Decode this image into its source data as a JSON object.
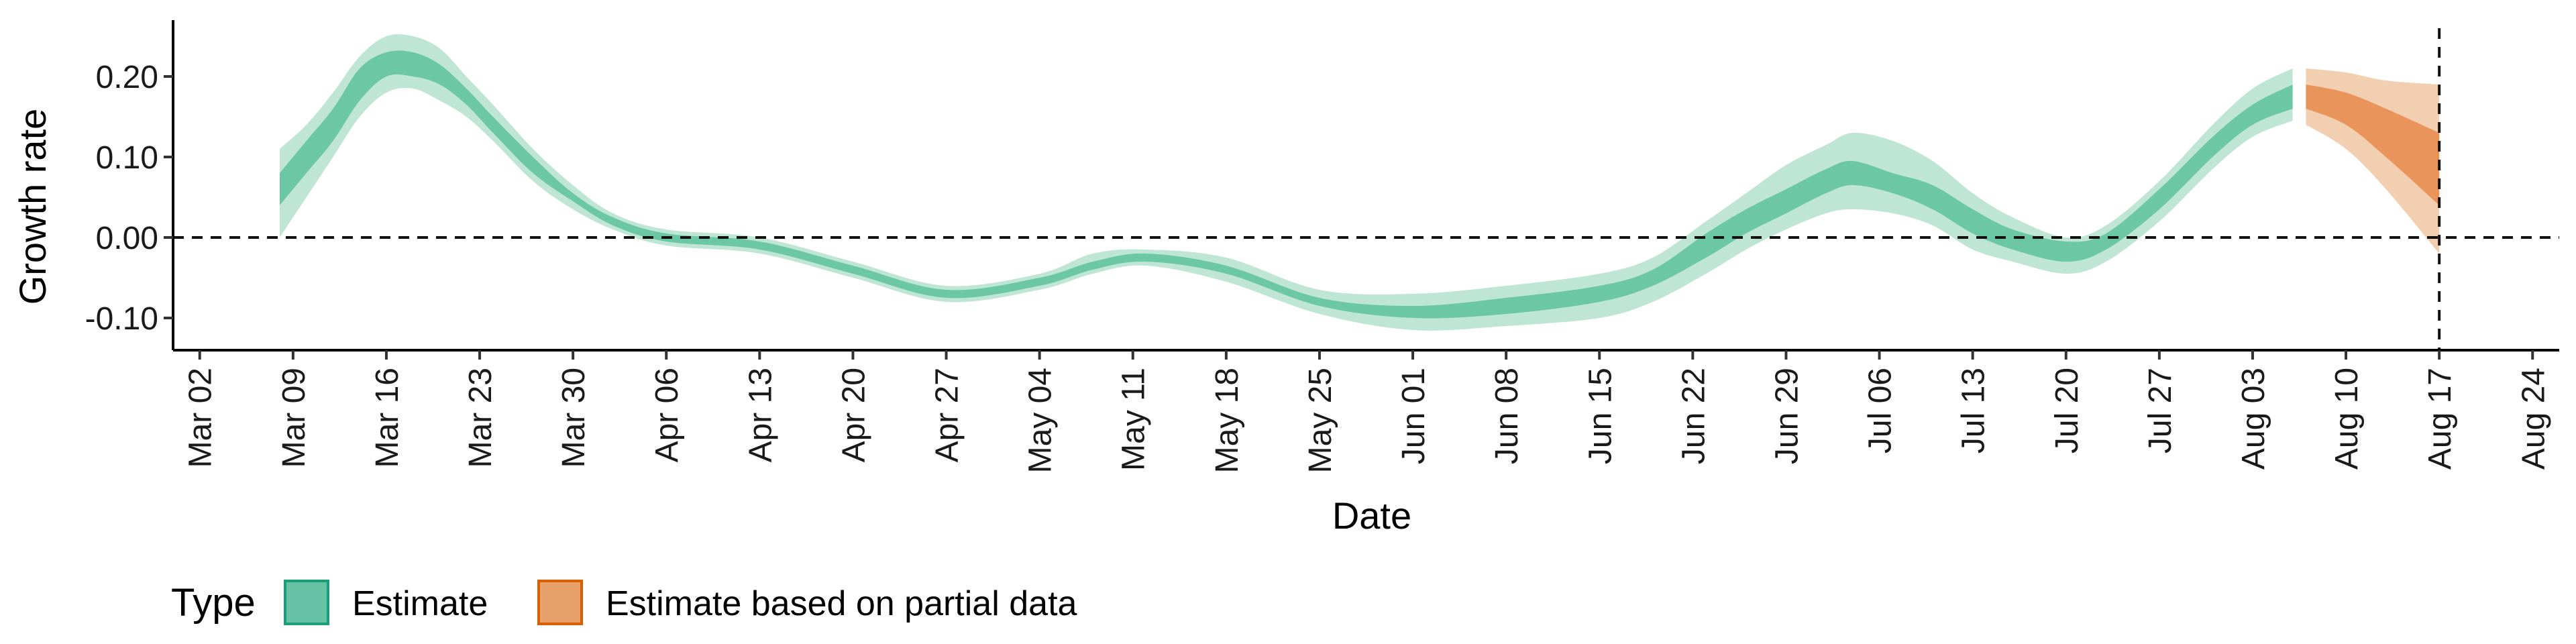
{
  "chart_data": {
    "type": "area",
    "xlabel": "Date",
    "ylabel": "Growth rate",
    "x_tick_labels": [
      "Mar 02",
      "Mar 09",
      "Mar 16",
      "Mar 23",
      "Mar 30",
      "Apr 06",
      "Apr 13",
      "Apr 20",
      "Apr 27",
      "May 04",
      "May 11",
      "May 18",
      "May 25",
      "Jun 01",
      "Jun 08",
      "Jun 15",
      "Jun 22",
      "Jun 29",
      "Jul 06",
      "Jul 13",
      "Jul 20",
      "Jul 27",
      "Aug 03",
      "Aug 10",
      "Aug 17",
      "Aug 24"
    ],
    "xlim": [
      "2020-02-29",
      "2020-08-26"
    ],
    "y_ticks": [
      -0.1,
      0.0,
      0.1,
      0.2
    ],
    "y_tick_labels": [
      "-0.10",
      "0.00",
      "0.10",
      "0.20"
    ],
    "ylim": [
      -0.14,
      0.27
    ],
    "reference_lines": {
      "horizontal_y": 0.0,
      "vertical_x": "2020-08-17",
      "style": "dashed"
    },
    "legend": {
      "title": "Type",
      "placement": "bottom-left",
      "entries": [
        {
          "label": "Estimate",
          "color": "#66c2a5",
          "border": "#1b9e77"
        },
        {
          "label": "Estimate based on partial data",
          "color": "#e8a16a",
          "border": "#d95f02"
        }
      ]
    },
    "series": [
      {
        "name": "Estimate",
        "color_inner": "#6cc7a6",
        "color_outer": "#bfe6d5",
        "points": [
          {
            "x": "2020-03-08",
            "median": 0.06,
            "lo50": 0.04,
            "hi50": 0.08,
            "lo90": 0.0,
            "hi90": 0.11
          },
          {
            "x": "2020-03-10",
            "median": 0.1,
            "lo50": 0.08,
            "hi50": 0.12,
            "lo90": 0.05,
            "hi90": 0.14
          },
          {
            "x": "2020-03-12",
            "median": 0.14,
            "lo50": 0.12,
            "hi50": 0.16,
            "lo90": 0.1,
            "hi90": 0.18
          },
          {
            "x": "2020-03-14",
            "median": 0.19,
            "lo50": 0.17,
            "hi50": 0.21,
            "lo90": 0.15,
            "hi90": 0.225
          },
          {
            "x": "2020-03-16",
            "median": 0.215,
            "lo50": 0.2,
            "hi50": 0.23,
            "lo90": 0.18,
            "hi90": 0.25
          },
          {
            "x": "2020-03-18",
            "median": 0.215,
            "lo50": 0.2,
            "hi50": 0.23,
            "lo90": 0.185,
            "hi90": 0.25
          },
          {
            "x": "2020-03-20",
            "median": 0.2,
            "lo50": 0.19,
            "hi50": 0.215,
            "lo90": 0.17,
            "hi90": 0.235
          },
          {
            "x": "2020-03-22",
            "median": 0.175,
            "lo50": 0.165,
            "hi50": 0.185,
            "lo90": 0.15,
            "hi90": 0.2
          },
          {
            "x": "2020-03-24",
            "median": 0.14,
            "lo50": 0.13,
            "hi50": 0.15,
            "lo90": 0.12,
            "hi90": 0.165
          },
          {
            "x": "2020-03-27",
            "median": 0.09,
            "lo50": 0.08,
            "hi50": 0.1,
            "lo90": 0.07,
            "hi90": 0.11
          },
          {
            "x": "2020-03-30",
            "median": 0.05,
            "lo50": 0.045,
            "hi50": 0.055,
            "lo90": 0.035,
            "hi90": 0.065
          },
          {
            "x": "2020-04-02",
            "median": 0.02,
            "lo50": 0.015,
            "hi50": 0.025,
            "lo90": 0.01,
            "hi90": 0.03
          },
          {
            "x": "2020-04-06",
            "median": 0.0,
            "lo50": -0.005,
            "hi50": 0.005,
            "lo90": -0.01,
            "hi90": 0.01
          },
          {
            "x": "2020-04-13",
            "median": -0.01,
            "lo50": -0.015,
            "hi50": -0.005,
            "lo90": -0.02,
            "hi90": 0.0
          },
          {
            "x": "2020-04-20",
            "median": -0.04,
            "lo50": -0.045,
            "hi50": -0.035,
            "lo90": -0.05,
            "hi90": -0.03
          },
          {
            "x": "2020-04-27",
            "median": -0.07,
            "lo50": -0.075,
            "hi50": -0.065,
            "lo90": -0.08,
            "hi90": -0.06
          },
          {
            "x": "2020-05-04",
            "median": -0.055,
            "lo50": -0.06,
            "hi50": -0.05,
            "lo90": -0.065,
            "hi90": -0.045
          },
          {
            "x": "2020-05-08",
            "median": -0.035,
            "lo50": -0.04,
            "hi50": -0.03,
            "lo90": -0.045,
            "hi90": -0.02
          },
          {
            "x": "2020-05-12",
            "median": -0.025,
            "lo50": -0.03,
            "hi50": -0.02,
            "lo90": -0.035,
            "hi90": -0.015
          },
          {
            "x": "2020-05-18",
            "median": -0.04,
            "lo50": -0.045,
            "hi50": -0.035,
            "lo90": -0.055,
            "hi90": -0.025
          },
          {
            "x": "2020-05-25",
            "median": -0.08,
            "lo50": -0.085,
            "hi50": -0.075,
            "lo90": -0.095,
            "hi90": -0.065
          },
          {
            "x": "2020-06-01",
            "median": -0.095,
            "lo50": -0.1,
            "hi50": -0.085,
            "lo90": -0.115,
            "hi90": -0.07
          },
          {
            "x": "2020-06-08",
            "median": -0.085,
            "lo50": -0.095,
            "hi50": -0.075,
            "lo90": -0.11,
            "hi90": -0.06
          },
          {
            "x": "2020-06-15",
            "median": -0.07,
            "lo50": -0.08,
            "hi50": -0.06,
            "lo90": -0.1,
            "hi90": -0.045
          },
          {
            "x": "2020-06-19",
            "median": -0.05,
            "lo50": -0.06,
            "hi50": -0.04,
            "lo90": -0.08,
            "hi90": -0.025
          },
          {
            "x": "2020-06-23",
            "median": -0.01,
            "lo50": -0.025,
            "hi50": 0.005,
            "lo90": -0.045,
            "hi90": 0.02
          },
          {
            "x": "2020-06-26",
            "median": 0.02,
            "lo50": 0.005,
            "hi50": 0.035,
            "lo90": -0.015,
            "hi90": 0.055
          },
          {
            "x": "2020-06-29",
            "median": 0.045,
            "lo50": 0.03,
            "hi50": 0.06,
            "lo90": 0.01,
            "hi90": 0.09
          },
          {
            "x": "2020-07-02",
            "median": 0.07,
            "lo50": 0.055,
            "hi50": 0.085,
            "lo90": 0.03,
            "hi90": 0.115
          },
          {
            "x": "2020-07-04",
            "median": 0.08,
            "lo50": 0.065,
            "hi50": 0.095,
            "lo90": 0.035,
            "hi90": 0.13
          },
          {
            "x": "2020-07-07",
            "median": 0.07,
            "lo50": 0.055,
            "hi50": 0.08,
            "lo90": 0.03,
            "hi90": 0.12
          },
          {
            "x": "2020-07-10",
            "median": 0.05,
            "lo50": 0.035,
            "hi50": 0.065,
            "lo90": 0.015,
            "hi90": 0.095
          },
          {
            "x": "2020-07-13",
            "median": 0.02,
            "lo50": 0.005,
            "hi50": 0.035,
            "lo90": -0.015,
            "hi90": 0.055
          },
          {
            "x": "2020-07-16",
            "median": 0.0,
            "lo50": -0.015,
            "hi50": 0.01,
            "lo90": -0.03,
            "hi90": 0.025
          },
          {
            "x": "2020-07-20",
            "median": -0.02,
            "lo50": -0.03,
            "hi50": -0.005,
            "lo90": -0.045,
            "hi90": 0.0
          },
          {
            "x": "2020-07-23",
            "median": -0.005,
            "lo50": -0.015,
            "hi50": 0.005,
            "lo90": -0.03,
            "hi90": 0.015
          },
          {
            "x": "2020-07-27",
            "median": 0.05,
            "lo50": 0.035,
            "hi50": 0.06,
            "lo90": 0.02,
            "hi90": 0.07
          },
          {
            "x": "2020-07-31",
            "median": 0.11,
            "lo50": 0.1,
            "hi50": 0.125,
            "lo90": 0.085,
            "hi90": 0.14
          },
          {
            "x": "2020-08-03",
            "median": 0.15,
            "lo50": 0.14,
            "hi50": 0.165,
            "lo90": 0.125,
            "hi90": 0.185
          },
          {
            "x": "2020-08-06",
            "median": 0.175,
            "lo50": 0.16,
            "hi50": 0.19,
            "lo90": 0.145,
            "hi90": 0.21
          }
        ]
      },
      {
        "name": "Estimate based on partial data",
        "color_inner": "#e8945a",
        "color_outer": "#f3cfb2",
        "points": [
          {
            "x": "2020-08-07",
            "median": 0.175,
            "lo50": 0.16,
            "hi50": 0.19,
            "lo90": 0.14,
            "hi90": 0.21
          },
          {
            "x": "2020-08-10",
            "median": 0.16,
            "lo50": 0.14,
            "hi50": 0.18,
            "lo90": 0.11,
            "hi90": 0.205
          },
          {
            "x": "2020-08-13",
            "median": 0.13,
            "lo50": 0.1,
            "hi50": 0.16,
            "lo90": 0.06,
            "hi90": 0.195
          },
          {
            "x": "2020-08-17",
            "median": 0.09,
            "lo50": 0.04,
            "hi50": 0.13,
            "lo90": -0.02,
            "hi90": 0.19
          }
        ]
      }
    ]
  }
}
